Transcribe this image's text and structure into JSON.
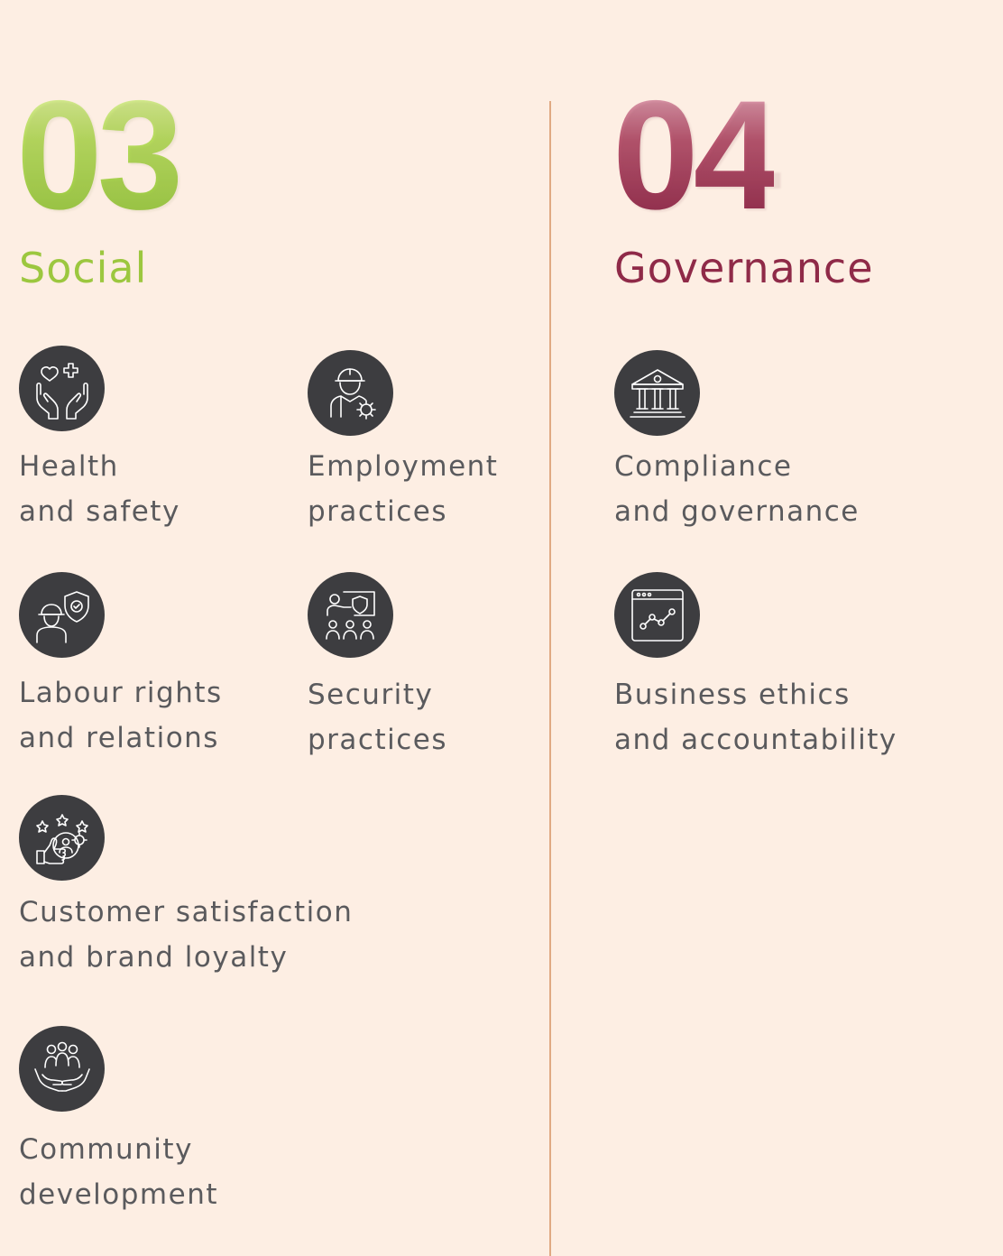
{
  "social": {
    "number": "03",
    "title": "Social",
    "items": [
      {
        "line1": "Health",
        "line2": "and safety",
        "icon": "hands-heart-cross-icon"
      },
      {
        "line1": "Employment",
        "line2": "practices",
        "icon": "worker-gear-icon"
      },
      {
        "line1": "Labour rights",
        "line2": "and relations",
        "icon": "worker-shield-icon"
      },
      {
        "line1": "Security",
        "line2": "practices",
        "icon": "presentation-group-icon"
      },
      {
        "line1": "Customer satisfaction",
        "line2": "and brand loyalty",
        "icon": "thumbs-up-stars-icon"
      },
      {
        "line1": "Community",
        "line2": "development",
        "icon": "hands-people-icon"
      }
    ]
  },
  "governance": {
    "number": "04",
    "title": "Governance",
    "items": [
      {
        "line1": "Compliance",
        "line2": "and governance",
        "icon": "institution-building-icon"
      },
      {
        "line1": "Business ethics",
        "line2": "and accountability",
        "icon": "line-chart-window-icon"
      }
    ]
  },
  "colors": {
    "background": "#FDEEE3",
    "social_accent": "#9CC73F",
    "governance_accent": "#8F2A48",
    "icon_circle": "#3D3D40",
    "text": "#5A5A5D",
    "divider": "#E0A983"
  }
}
